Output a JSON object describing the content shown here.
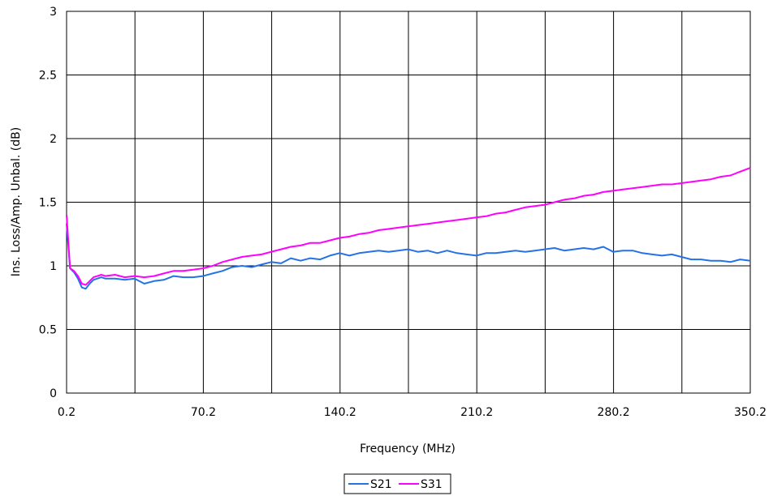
{
  "chart_data": {
    "type": "line",
    "title": "",
    "xlabel": "Frequency (MHz)",
    "ylabel": "Ins. Loss/Amp. Unbal. (dB)",
    "xlim": [
      0.2,
      350.2
    ],
    "ylim": [
      0,
      3
    ],
    "x_ticks": [
      "0.2",
      "70.2",
      "140.2",
      "210.2",
      "280.2",
      "350.2"
    ],
    "y_ticks": [
      "0",
      "0.5",
      "1",
      "1.5",
      "2",
      "2.5",
      "3"
    ],
    "grid": true,
    "legend_position": "bottom",
    "series": [
      {
        "name": "S21",
        "color": "#2472e8",
        "x": [
          0.2,
          2,
          4,
          6,
          8,
          10,
          12,
          14,
          16,
          18,
          20,
          25,
          30,
          35,
          40,
          45,
          50,
          55,
          60,
          65,
          70,
          75,
          80,
          85,
          90,
          95,
          100,
          105,
          110,
          115,
          120,
          125,
          130,
          135,
          140,
          145,
          150,
          155,
          160,
          165,
          170,
          175,
          180,
          185,
          190,
          195,
          200,
          205,
          210,
          215,
          220,
          225,
          230,
          235,
          240,
          245,
          250,
          255,
          260,
          265,
          270,
          275,
          280,
          285,
          290,
          295,
          300,
          305,
          310,
          315,
          320,
          325,
          330,
          335,
          340,
          345,
          350.2
        ],
        "y": [
          1.33,
          0.98,
          0.95,
          0.9,
          0.83,
          0.82,
          0.86,
          0.89,
          0.9,
          0.91,
          0.9,
          0.9,
          0.89,
          0.9,
          0.86,
          0.88,
          0.89,
          0.92,
          0.91,
          0.91,
          0.92,
          0.94,
          0.96,
          0.99,
          1.0,
          0.99,
          1.01,
          1.03,
          1.02,
          1.06,
          1.04,
          1.06,
          1.05,
          1.08,
          1.1,
          1.08,
          1.1,
          1.11,
          1.12,
          1.11,
          1.12,
          1.13,
          1.11,
          1.12,
          1.1,
          1.12,
          1.1,
          1.09,
          1.08,
          1.1,
          1.1,
          1.11,
          1.12,
          1.11,
          1.12,
          1.13,
          1.14,
          1.12,
          1.13,
          1.14,
          1.13,
          1.15,
          1.11,
          1.12,
          1.12,
          1.1,
          1.09,
          1.08,
          1.09,
          1.07,
          1.05,
          1.05,
          1.04,
          1.04,
          1.03,
          1.05,
          1.04
        ]
      },
      {
        "name": "S31",
        "color": "#ff00ff",
        "x": [
          0.2,
          2,
          4,
          6,
          8,
          10,
          12,
          14,
          16,
          18,
          20,
          25,
          30,
          35,
          40,
          45,
          50,
          55,
          60,
          65,
          70,
          75,
          80,
          85,
          90,
          95,
          100,
          105,
          110,
          115,
          120,
          125,
          130,
          135,
          140,
          145,
          150,
          155,
          160,
          165,
          170,
          175,
          180,
          185,
          190,
          195,
          200,
          205,
          210,
          215,
          220,
          225,
          230,
          235,
          240,
          245,
          250,
          255,
          260,
          265,
          270,
          275,
          280,
          285,
          290,
          295,
          300,
          305,
          310,
          315,
          320,
          325,
          330,
          335,
          340,
          345,
          350.2
        ],
        "y": [
          1.4,
          0.98,
          0.96,
          0.92,
          0.86,
          0.85,
          0.88,
          0.91,
          0.92,
          0.93,
          0.92,
          0.93,
          0.91,
          0.92,
          0.91,
          0.92,
          0.94,
          0.96,
          0.96,
          0.97,
          0.98,
          1.0,
          1.03,
          1.05,
          1.07,
          1.08,
          1.09,
          1.11,
          1.13,
          1.15,
          1.16,
          1.18,
          1.18,
          1.2,
          1.22,
          1.23,
          1.25,
          1.26,
          1.28,
          1.29,
          1.3,
          1.31,
          1.32,
          1.33,
          1.34,
          1.35,
          1.36,
          1.37,
          1.38,
          1.39,
          1.41,
          1.42,
          1.44,
          1.46,
          1.47,
          1.48,
          1.5,
          1.52,
          1.53,
          1.55,
          1.56,
          1.58,
          1.59,
          1.6,
          1.61,
          1.62,
          1.63,
          1.64,
          1.64,
          1.65,
          1.66,
          1.67,
          1.68,
          1.7,
          1.71,
          1.74,
          1.77
        ]
      }
    ]
  }
}
